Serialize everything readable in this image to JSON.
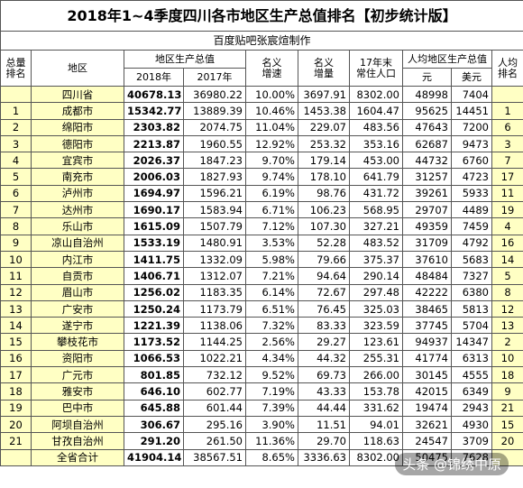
{
  "title": "2018年1~4季度四川各市地区生产总值排名【初步统计版】",
  "subtitle": "百度贴吧张宸煊制作",
  "header": {
    "rank": [
      "总量",
      "排名"
    ],
    "region": "地区",
    "gdp": "地区生产总值",
    "gdp2018": "2018年",
    "gdp2017": "2017年",
    "growth": [
      "名义",
      "增速"
    ],
    "increment": [
      "名义",
      "增量"
    ],
    "population": [
      "17年末",
      "常住人口"
    ],
    "per_capita": "人均地区生产总值",
    "yuan": "元",
    "usd": "美元",
    "per_capita_rank": [
      "人均",
      "排名"
    ]
  },
  "rows": [
    {
      "region": "四川省",
      "gdp2018": "40678.13",
      "gdp2017": "36980.22",
      "growth": "10.00%",
      "increment": "3697.91",
      "population": "8302.00",
      "yuan": "48998",
      "usd": "7404"
    },
    {
      "rank": "1",
      "region": "成都市",
      "gdp2018": "15342.77",
      "gdp2017": "13889.39",
      "growth": "10.46%",
      "increment": "1453.38",
      "population": "1604.47",
      "yuan": "95625",
      "usd": "14451",
      "per_capita_rank": "1"
    },
    {
      "rank": "2",
      "region": "绵阳市",
      "gdp2018": "2303.82",
      "gdp2017": "2074.75",
      "growth": "11.04%",
      "increment": "229.07",
      "population": "483.56",
      "yuan": "47643",
      "usd": "7200",
      "per_capita_rank": "6"
    },
    {
      "rank": "3",
      "region": "德阳市",
      "gdp2018": "2213.87",
      "gdp2017": "1960.55",
      "growth": "12.92%",
      "increment": "253.32",
      "population": "353.16",
      "yuan": "62687",
      "usd": "9473",
      "per_capita_rank": "3"
    },
    {
      "rank": "4",
      "region": "宜宾市",
      "gdp2018": "2026.37",
      "gdp2017": "1847.23",
      "growth": "9.70%",
      "increment": "179.14",
      "population": "453.00",
      "yuan": "44732",
      "usd": "6760",
      "per_capita_rank": "7"
    },
    {
      "rank": "5",
      "region": "南充市",
      "gdp2018": "2006.03",
      "gdp2017": "1827.93",
      "growth": "9.74%",
      "increment": "178.10",
      "population": "641.79",
      "yuan": "31257",
      "usd": "4723",
      "per_capita_rank": "17"
    },
    {
      "rank": "6",
      "region": "泸州市",
      "gdp2018": "1694.97",
      "gdp2017": "1596.21",
      "growth": "6.19%",
      "increment": "98.76",
      "population": "431.72",
      "yuan": "39261",
      "usd": "5933",
      "per_capita_rank": "11"
    },
    {
      "rank": "7",
      "region": "达州市",
      "gdp2018": "1690.17",
      "gdp2017": "1583.94",
      "growth": "6.71%",
      "increment": "106.23",
      "population": "568.95",
      "yuan": "29707",
      "usd": "4489",
      "per_capita_rank": "19"
    },
    {
      "rank": "8",
      "region": "乐山市",
      "gdp2018": "1615.09",
      "gdp2017": "1507.79",
      "growth": "7.12%",
      "increment": "107.30",
      "population": "327.21",
      "yuan": "49359",
      "usd": "7459",
      "per_capita_rank": "4"
    },
    {
      "rank": "9",
      "region": "凉山自治州",
      "gdp2018": "1533.19",
      "gdp2017": "1480.91",
      "growth": "3.53%",
      "increment": "52.28",
      "population": "483.52",
      "yuan": "31709",
      "usd": "4792",
      "per_capita_rank": "16"
    },
    {
      "rank": "10",
      "region": "内江市",
      "gdp2018": "1411.75",
      "gdp2017": "1332.09",
      "growth": "5.98%",
      "increment": "79.66",
      "population": "375.37",
      "yuan": "37610",
      "usd": "5683",
      "per_capita_rank": "14"
    },
    {
      "rank": "11",
      "region": "自贡市",
      "gdp2018": "1406.71",
      "gdp2017": "1312.07",
      "growth": "7.21%",
      "increment": "94.64",
      "population": "290.14",
      "yuan": "48484",
      "usd": "7327",
      "per_capita_rank": "5"
    },
    {
      "rank": "12",
      "region": "眉山市",
      "gdp2018": "1256.02",
      "gdp2017": "1183.35",
      "growth": "6.14%",
      "increment": "72.67",
      "population": "297.48",
      "yuan": "42222",
      "usd": "6380",
      "per_capita_rank": "8"
    },
    {
      "rank": "13",
      "region": "广安市",
      "gdp2018": "1250.24",
      "gdp2017": "1173.79",
      "growth": "6.51%",
      "increment": "76.45",
      "population": "325.03",
      "yuan": "38465",
      "usd": "5813",
      "per_capita_rank": "12"
    },
    {
      "rank": "14",
      "region": "遂宁市",
      "gdp2018": "1221.39",
      "gdp2017": "1138.06",
      "growth": "7.32%",
      "increment": "83.33",
      "population": "323.59",
      "yuan": "37745",
      "usd": "5704",
      "per_capita_rank": "13"
    },
    {
      "rank": "15",
      "region": "攀枝花市",
      "gdp2018": "1173.52",
      "gdp2017": "1144.25",
      "growth": "2.56%",
      "increment": "29.27",
      "population": "123.61",
      "yuan": "94937",
      "usd": "14347",
      "per_capita_rank": "2"
    },
    {
      "rank": "16",
      "region": "资阳市",
      "gdp2018": "1066.53",
      "gdp2017": "1022.21",
      "growth": "4.34%",
      "increment": "44.32",
      "population": "255.31",
      "yuan": "41774",
      "usd": "6313",
      "per_capita_rank": "10"
    },
    {
      "rank": "17",
      "region": "广元市",
      "gdp2018": "801.85",
      "gdp2017": "732.12",
      "growth": "9.52%",
      "increment": "69.73",
      "population": "266.00",
      "yuan": "30145",
      "usd": "4555",
      "per_capita_rank": "18"
    },
    {
      "rank": "18",
      "region": "雅安市",
      "gdp2018": "646.10",
      "gdp2017": "602.77",
      "growth": "7.19%",
      "increment": "43.33",
      "population": "153.78",
      "yuan": "42015",
      "usd": "6349",
      "per_capita_rank": "9"
    },
    {
      "rank": "19",
      "region": "巴中市",
      "gdp2018": "645.88",
      "gdp2017": "601.44",
      "growth": "7.39%",
      "increment": "44.44",
      "population": "331.62",
      "yuan": "19474",
      "usd": "2943",
      "per_capita_rank": "21"
    },
    {
      "rank": "20",
      "region": "阿坝自治州",
      "gdp2018": "306.67",
      "gdp2017": "295.16",
      "growth": "3.90%",
      "increment": "11.51",
      "population": "94.01",
      "yuan": "32621",
      "usd": "4930",
      "per_capita_rank": "15"
    },
    {
      "rank": "21",
      "region": "甘孜自治州",
      "gdp2018": "291.20",
      "gdp2017": "261.50",
      "growth": "11.36%",
      "increment": "29.70",
      "population": "118.63",
      "yuan": "24547",
      "usd": "3709",
      "per_capita_rank": "20"
    },
    {
      "region": "全省合计",
      "gdp2018": "41904.14",
      "gdp2017": "38567.51",
      "growth": "8.65%",
      "increment": "3336.63",
      "population": "8302.00",
      "yuan": "50475",
      "usd": "7628"
    }
  ],
  "watermark": "头条 @锦绣中原"
}
